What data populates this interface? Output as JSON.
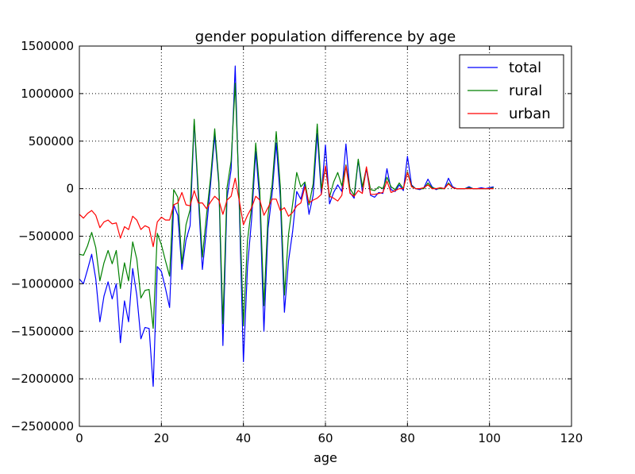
{
  "chart_data": {
    "type": "line",
    "title": "gender population difference by age",
    "xlabel": "age",
    "ylabel": "",
    "xlim": [
      0,
      120
    ],
    "ylim": [
      -2500000,
      1500000
    ],
    "xticks": [
      0,
      20,
      40,
      60,
      80,
      100,
      120
    ],
    "yticks": [
      -2500000,
      -2000000,
      -1500000,
      -1000000,
      -500000,
      0,
      500000,
      1000000,
      1500000
    ],
    "xtick_labels": [
      "0",
      "20",
      "40",
      "60",
      "80",
      "100",
      "120"
    ],
    "ytick_labels": [
      "−2500000",
      "−2000000",
      "−1500000",
      "−1000000",
      "−500000",
      "0",
      "500000",
      "1000000",
      "1500000"
    ],
    "grid": true,
    "legend_position": "top-right",
    "x": [
      0,
      1,
      2,
      3,
      4,
      5,
      6,
      7,
      8,
      9,
      10,
      11,
      12,
      13,
      14,
      15,
      16,
      17,
      18,
      19,
      20,
      21,
      22,
      23,
      24,
      25,
      26,
      27,
      28,
      29,
      30,
      31,
      32,
      33,
      34,
      35,
      36,
      37,
      38,
      39,
      40,
      41,
      42,
      43,
      44,
      45,
      46,
      47,
      48,
      49,
      50,
      51,
      52,
      53,
      54,
      55,
      56,
      57,
      58,
      59,
      60,
      61,
      62,
      63,
      64,
      65,
      66,
      67,
      68,
      69,
      70,
      71,
      72,
      73,
      74,
      75,
      76,
      77,
      78,
      79,
      80,
      81,
      82,
      83,
      84,
      85,
      86,
      87,
      88,
      89,
      90,
      91,
      92,
      93,
      94,
      95,
      96,
      97,
      98,
      99,
      100,
      101
    ],
    "series": [
      {
        "name": "total",
        "color": "#0000ff",
        "values": [
          -950000,
          -1000000,
          -850000,
          -690000,
          -950000,
          -1400000,
          -1130000,
          -980000,
          -1160000,
          -1000000,
          -1620000,
          -1180000,
          -1400000,
          -840000,
          -1120000,
          -1580000,
          -1460000,
          -1470000,
          -2080000,
          -820000,
          -870000,
          -1050000,
          -1250000,
          -170000,
          -280000,
          -850000,
          -540000,
          -390000,
          710000,
          -90000,
          -850000,
          -420000,
          50000,
          560000,
          50000,
          -1650000,
          -100000,
          200000,
          1290000,
          -200000,
          -1820000,
          -820000,
          -320000,
          390000,
          -130000,
          -1500000,
          -420000,
          -50000,
          480000,
          -100000,
          -1300000,
          -760000,
          -450000,
          -30000,
          -110000,
          60000,
          -270000,
          -70000,
          580000,
          -60000,
          460000,
          -160000,
          -40000,
          40000,
          -30000,
          470000,
          -40000,
          -100000,
          300000,
          -30000,
          210000,
          -70000,
          -90000,
          -40000,
          -50000,
          210000,
          -10000,
          -30000,
          40000,
          -20000,
          340000,
          40000,
          0,
          -10000,
          10000,
          100000,
          20000,
          -10000,
          10000,
          0,
          110000,
          20000,
          0,
          0,
          0,
          20000,
          0,
          0,
          10000,
          0,
          10000,
          20000
        ]
      },
      {
        "name": "rural",
        "color": "#008000",
        "values": [
          -690000,
          -700000,
          -600000,
          -460000,
          -620000,
          -970000,
          -780000,
          -650000,
          -790000,
          -650000,
          -1050000,
          -780000,
          -970000,
          -560000,
          -740000,
          -1150000,
          -1070000,
          -1060000,
          -1470000,
          -470000,
          -590000,
          -760000,
          -920000,
          -10000,
          -90000,
          -790000,
          -380000,
          -220000,
          730000,
          -20000,
          -720000,
          -280000,
          120000,
          630000,
          80000,
          -1420000,
          10000,
          290000,
          1110000,
          -120000,
          -1440000,
          -540000,
          -190000,
          480000,
          -30000,
          -1230000,
          -280000,
          40000,
          600000,
          20000,
          -1120000,
          -480000,
          -160000,
          170000,
          20000,
          70000,
          -170000,
          50000,
          680000,
          0,
          230000,
          -90000,
          70000,
          170000,
          30000,
          250000,
          0,
          -70000,
          310000,
          20000,
          220000,
          -10000,
          -20000,
          20000,
          0,
          120000,
          20000,
          -10000,
          60000,
          0,
          180000,
          30000,
          0,
          0,
          0,
          60000,
          10000,
          0,
          0,
          0,
          60000,
          10000,
          0,
          0,
          0,
          10000,
          0,
          0,
          0,
          0,
          0,
          10000
        ]
      },
      {
        "name": "urban",
        "color": "#ff0000",
        "values": [
          -270000,
          -310000,
          -260000,
          -230000,
          -280000,
          -410000,
          -350000,
          -330000,
          -370000,
          -360000,
          -520000,
          -400000,
          -430000,
          -290000,
          -330000,
          -430000,
          -390000,
          -410000,
          -610000,
          -350000,
          -300000,
          -330000,
          -330000,
          -170000,
          -150000,
          -40000,
          -170000,
          -180000,
          -20000,
          -150000,
          -150000,
          -210000,
          -140000,
          -80000,
          -120000,
          -270000,
          -120000,
          -80000,
          110000,
          -130000,
          -380000,
          -280000,
          -200000,
          -80000,
          -120000,
          -280000,
          -200000,
          -110000,
          -110000,
          -230000,
          -200000,
          -290000,
          -250000,
          -180000,
          -150000,
          20000,
          -150000,
          -120000,
          -100000,
          -60000,
          240000,
          -80000,
          -100000,
          -130000,
          -70000,
          240000,
          -50000,
          -80000,
          -20000,
          -50000,
          230000,
          -60000,
          -60000,
          -50000,
          -40000,
          80000,
          -40000,
          -20000,
          0,
          0,
          170000,
          20000,
          0,
          0,
          10000,
          40000,
          0,
          0,
          10000,
          0,
          50000,
          10000,
          0,
          0,
          0,
          0,
          0,
          0,
          0,
          0,
          0,
          0
        ]
      }
    ]
  }
}
